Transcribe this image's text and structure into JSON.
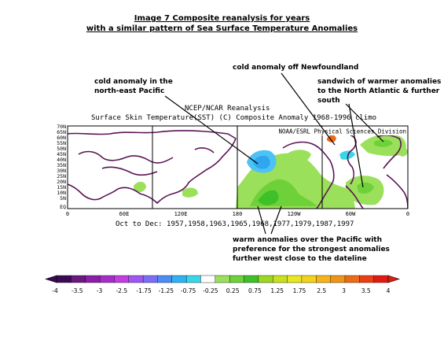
{
  "title": {
    "line1": "Image 7 Composite reanalysis for years",
    "line2": "with a similar pattern of Sea Surface Temperature Anomalies"
  },
  "annotations": {
    "north_east_pacific": "cold anomaly in the\nnorth-east Pacific",
    "newfoundland": "cold anomaly off Newfoundland",
    "sandwich": "sandwich of warmer anomalies\nto the North Atlantic & further\nsouth",
    "warm_pacific": "warm anomalies over the Pacific with\npreference for the strongest anomalies\nfurther west close to the dateline"
  },
  "map": {
    "header1": "NCEP/NCAR Reanalysis",
    "header2": "Surface Skin Temperature(SST) (C) Composite Anomaly 1968-1996 climo",
    "credit": "NOAA/ESRL Physical Sciences Division",
    "subtitle": "Oct to Dec: 1957,1958,1963,1965,1968,1977,1979,1987,1997",
    "lat_labels": [
      "70N",
      "65N",
      "60N",
      "55N",
      "50N",
      "45N",
      "40N",
      "35N",
      "30N",
      "25N",
      "20N",
      "15N",
      "10N",
      "5N",
      "EQ"
    ],
    "lon_labels": [
      "0",
      "60E",
      "120E",
      "180",
      "120W",
      "60W",
      "0"
    ]
  },
  "colorbar": {
    "labels": [
      "-4",
      "-3.5",
      "-3",
      "-2.5",
      "-1.75",
      "-1.25",
      "-0.75",
      "-0.25",
      "0.25",
      "0.75",
      "1.25",
      "1.75",
      "2.5",
      "3",
      "3.5",
      "4"
    ],
    "colors": [
      "#3b0a52",
      "#6a1a7e",
      "#8a1fa8",
      "#a62ec8",
      "#c23ee0",
      "#9d57f2",
      "#7a6ef6",
      "#4d8cf5",
      "#2fb2f2",
      "#39d6e8",
      "#ffffff",
      "#9be05a",
      "#6fd13a",
      "#3fc028",
      "#9ad822",
      "#c8e020",
      "#e8e820",
      "#f5d21a",
      "#f5b41a",
      "#f09418",
      "#ec6c16",
      "#e84014",
      "#e01c10"
    ]
  }
}
